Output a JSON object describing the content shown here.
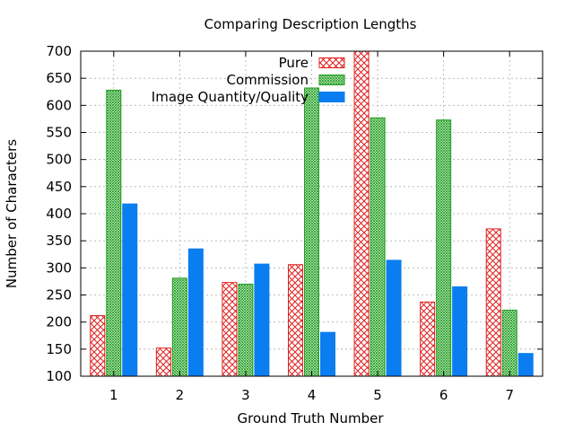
{
  "chart_data": {
    "type": "bar",
    "title": "Comparing Description Lengths",
    "xlabel": "Ground Truth Number",
    "ylabel": "Number of Characters",
    "categories": [
      "1",
      "2",
      "3",
      "4",
      "5",
      "6",
      "7"
    ],
    "ylim": [
      100,
      700
    ],
    "yticks": [
      100,
      150,
      200,
      250,
      300,
      350,
      400,
      450,
      500,
      550,
      600,
      650,
      700
    ],
    "grid": true,
    "legend_position": "top-right",
    "series": [
      {
        "name": "Pure",
        "values": [
          212,
          152,
          273,
          306,
          700,
          237,
          372
        ],
        "color": "#e0201f",
        "pattern": "crosshatch"
      },
      {
        "name": "Commission",
        "values": [
          628,
          281,
          270,
          632,
          577,
          573,
          222
        ],
        "color": "#1f9e1f",
        "pattern": "fine-crosshatch"
      },
      {
        "name": "Image Quantity/Quality",
        "values": [
          418,
          335,
          307,
          181,
          314,
          265,
          142
        ],
        "color": "#0a7df0",
        "pattern": "solid"
      }
    ]
  }
}
